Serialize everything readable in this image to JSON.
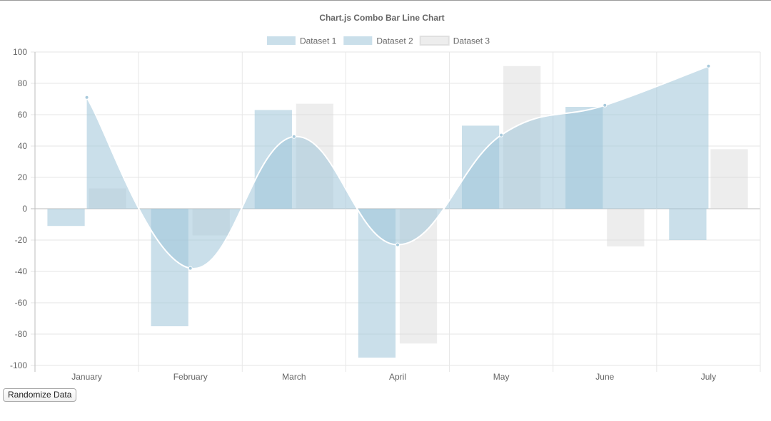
{
  "chart_data": {
    "type": "bar",
    "title": "Chart.js Combo Bar Line Chart",
    "categories": [
      "January",
      "February",
      "March",
      "April",
      "May",
      "June",
      "July"
    ],
    "ylim": [
      -100,
      100
    ],
    "yticks": [
      100,
      80,
      60,
      40,
      20,
      0,
      -20,
      -40,
      -60,
      -80,
      -100
    ],
    "grid": true,
    "legend_position": "top",
    "series": [
      {
        "name": "Dataset 1",
        "kind": "line-area",
        "values": [
          71,
          -38,
          46,
          -23,
          47,
          66,
          91
        ],
        "fill_color": "rgba(159,196,216,0.55)",
        "border_color": "#ffffff"
      },
      {
        "name": "Dataset 2",
        "kind": "bar",
        "values": [
          -11,
          -75,
          63,
          -95,
          53,
          65,
          -20
        ],
        "fill_color": "rgba(159,196,216,0.55)",
        "border_color": "#ffffff"
      },
      {
        "name": "Dataset 3",
        "kind": "bar",
        "values": [
          13,
          -17,
          67,
          -86,
          91,
          -24,
          38
        ],
        "fill_color": "rgba(210,210,210,0.4)",
        "border_color": "#ffffff"
      }
    ]
  },
  "controls": {
    "randomize_label": "Randomize Data"
  }
}
